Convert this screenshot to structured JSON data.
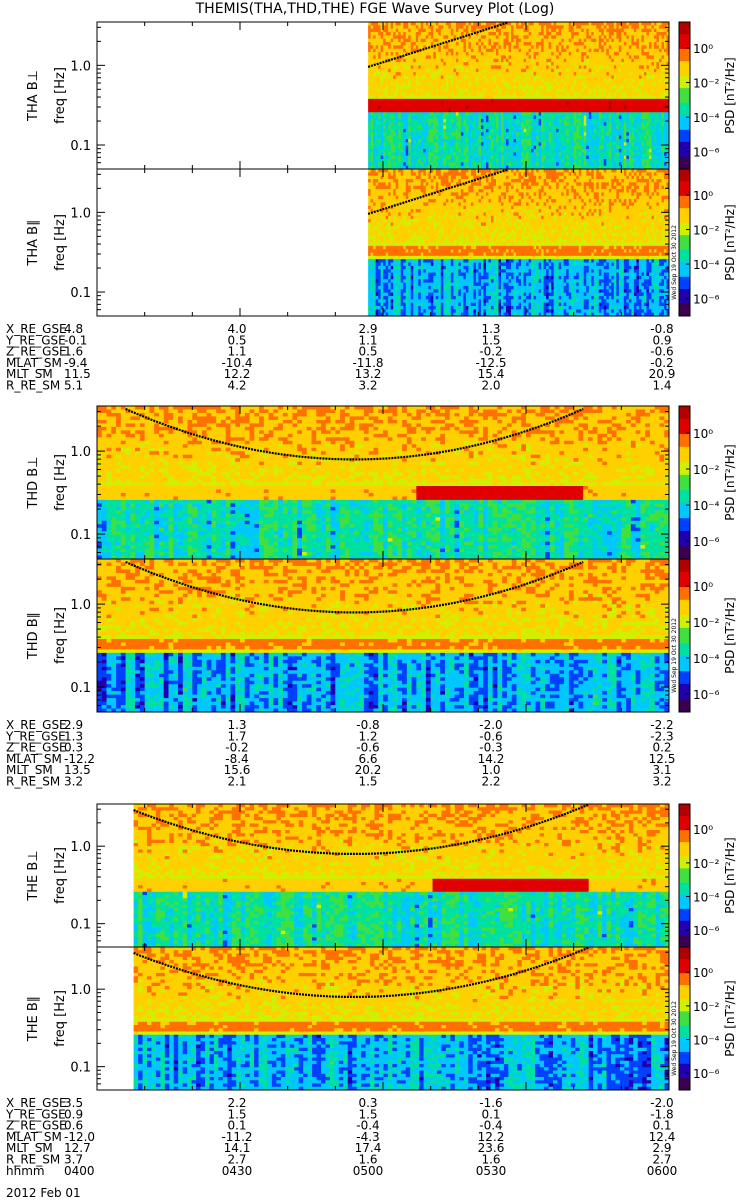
{
  "title": "THEMIS(THA,THD,THE) FGE Wave Survey Plot (Log)",
  "date_label": "2012 Feb 01",
  "stamp": "Wed Sep 19 Oct 30 2012",
  "colorbar": {
    "label": "PSD [nT²/Hz]",
    "ticks": [
      "10⁰",
      "10⁻²",
      "10⁻⁴",
      "10⁻⁶"
    ],
    "tick_exponents": [
      0,
      -2,
      -4,
      -6
    ],
    "colors": [
      "#ffffff",
      "#3c0050",
      "#2000b0",
      "#0040ff",
      "#00c8ff",
      "#00e0a0",
      "#40e040",
      "#d0f000",
      "#ffd000",
      "#ff7000",
      "#e00000",
      "#b00000"
    ]
  },
  "chart_data": [
    {
      "type": "heatmap",
      "probe": "THA",
      "component": "B⊥",
      "ylabel": "THA B⊥",
      "yunit": "freq [Hz]",
      "yscale": "log",
      "ylim": [
        0.05,
        3.5
      ],
      "yticks": [
        "1.0",
        "0.1"
      ],
      "ytick_values": [
        1.0,
        0.1
      ],
      "xlim_hhmm": [
        "0400",
        "0600"
      ],
      "data_start_fraction": 0.474,
      "line_hz": 0.32,
      "line_intensity": "strong",
      "gyro_curve": "rising"
    },
    {
      "type": "heatmap",
      "probe": "THA",
      "component": "B∥",
      "ylabel": "THA B∥",
      "yunit": "freq [Hz]",
      "yscale": "log",
      "ylim": [
        0.05,
        3.5
      ],
      "yticks": [
        "1.0",
        "0.1"
      ],
      "ytick_values": [
        1.0,
        0.1
      ],
      "xlim_hhmm": [
        "0400",
        "0600"
      ],
      "data_start_fraction": 0.474,
      "line_hz": 0.33,
      "line_intensity": "medium",
      "gyro_curve": "rising"
    },
    {
      "type": "heatmap",
      "probe": "THD",
      "component": "B⊥",
      "ylabel": "THD B⊥",
      "yunit": "freq [Hz]",
      "yscale": "log",
      "ylim": [
        0.05,
        3.5
      ],
      "yticks": [
        "1.0",
        "0.1"
      ],
      "ytick_values": [
        1.0,
        0.1
      ],
      "xlim_hhmm": [
        "0400",
        "0600"
      ],
      "data_start_fraction": 0.0,
      "line_hz": 0.32,
      "line_intensity": "mixed",
      "gyro_curve": "valley"
    },
    {
      "type": "heatmap",
      "probe": "THD",
      "component": "B∥",
      "ylabel": "THD B∥",
      "yunit": "freq [Hz]",
      "yscale": "log",
      "ylim": [
        0.05,
        3.5
      ],
      "yticks": [
        "1.0",
        "0.1"
      ],
      "ytick_values": [
        1.0,
        0.1
      ],
      "xlim_hhmm": [
        "0400",
        "0600"
      ],
      "data_start_fraction": 0.0,
      "line_hz": 0.33,
      "line_intensity": "medium",
      "gyro_curve": "valley"
    },
    {
      "type": "heatmap",
      "probe": "THE",
      "component": "B⊥",
      "ylabel": "THE B⊥",
      "yunit": "freq [Hz]",
      "yscale": "log",
      "ylim": [
        0.05,
        3.5
      ],
      "yticks": [
        "1.0",
        "0.1"
      ],
      "ytick_values": [
        1.0,
        0.1
      ],
      "xlim_hhmm": [
        "0400",
        "0600"
      ],
      "data_start_fraction": 0.064,
      "line_hz": 0.32,
      "line_intensity": "mixed",
      "gyro_curve": "valley"
    },
    {
      "type": "heatmap",
      "probe": "THE",
      "component": "B∥",
      "ylabel": "THE B∥",
      "yunit": "freq [Hz]",
      "yscale": "log",
      "ylim": [
        0.05,
        3.5
      ],
      "yticks": [
        "1.0",
        "0.1"
      ],
      "ytick_values": [
        1.0,
        0.1
      ],
      "xlim_hhmm": [
        "0400",
        "0600"
      ],
      "data_start_fraction": 0.064,
      "line_hz": 0.33,
      "line_intensity": "medium",
      "gyro_curve": "valley"
    }
  ],
  "ephemeris": [
    {
      "probe": "THA",
      "rows": [
        {
          "label": "X_RE_GSE",
          "values": [
            "4.8",
            "4.0",
            "2.9",
            "1.3",
            "-0.8"
          ]
        },
        {
          "label": "Y_RE_GSE",
          "values": [
            "-0.1",
            "0.5",
            "1.1",
            "1.5",
            "0.9"
          ]
        },
        {
          "label": "Z_RE_GSE",
          "values": [
            "1.6",
            "1.1",
            "0.5",
            "-0.2",
            "-0.6"
          ]
        },
        {
          "label": "MLAT_SM",
          "values": [
            "-9.4",
            "-10.4",
            "-11.8",
            "-12.5",
            "-0.2"
          ]
        },
        {
          "label": "MLT_SM",
          "values": [
            "11.5",
            "12.2",
            "13.2",
            "15.4",
            "20.9"
          ]
        },
        {
          "label": "R_RE_SM",
          "values": [
            "5.1",
            "4.2",
            "3.2",
            "2.0",
            "1.4"
          ]
        }
      ]
    },
    {
      "probe": "THD",
      "rows": [
        {
          "label": "X_RE_GSE",
          "values": [
            "2.9",
            "1.3",
            "-0.8",
            "-2.0",
            "-2.2"
          ]
        },
        {
          "label": "Y_RE_GSE",
          "values": [
            "1.3",
            "1.7",
            "1.2",
            "-0.6",
            "-2.3"
          ]
        },
        {
          "label": "Z_RE_GSE",
          "values": [
            "0.3",
            "-0.2",
            "-0.6",
            "-0.3",
            "0.2"
          ]
        },
        {
          "label": "MLAT_SM",
          "values": [
            "-12.2",
            "-8.4",
            "6.6",
            "14.2",
            "12.5"
          ]
        },
        {
          "label": "MLT_SM",
          "values": [
            "13.5",
            "15.6",
            "20.2",
            "1.0",
            "3.1"
          ]
        },
        {
          "label": "R_RE_SM",
          "values": [
            "3.2",
            "2.1",
            "1.5",
            "2.2",
            "3.2"
          ]
        }
      ]
    },
    {
      "probe": "THE",
      "rows": [
        {
          "label": "X_RE_GSE",
          "values": [
            "3.5",
            "2.2",
            "0.3",
            "-1.6",
            "-2.0"
          ]
        },
        {
          "label": "Y_RE_GSE",
          "values": [
            "0.9",
            "1.5",
            "1.5",
            "0.1",
            "-1.8"
          ]
        },
        {
          "label": "Z_RE_GSE",
          "values": [
            "0.6",
            "0.1",
            "-0.4",
            "-0.4",
            "0.1"
          ]
        },
        {
          "label": "MLAT_SM",
          "values": [
            "-12.0",
            "-11.2",
            "-4.3",
            "12.2",
            "12.4"
          ]
        },
        {
          "label": "MLT_SM",
          "values": [
            "12.7",
            "14.1",
            "17.4",
            "23.6",
            "2.9"
          ]
        },
        {
          "label": "R_RE_SM",
          "values": [
            "3.7",
            "2.7",
            "1.6",
            "1.6",
            "2.7"
          ]
        },
        {
          "label": "hhmm",
          "values": [
            "0400",
            "0430",
            "0500",
            "0530",
            "0600"
          ]
        }
      ]
    }
  ]
}
